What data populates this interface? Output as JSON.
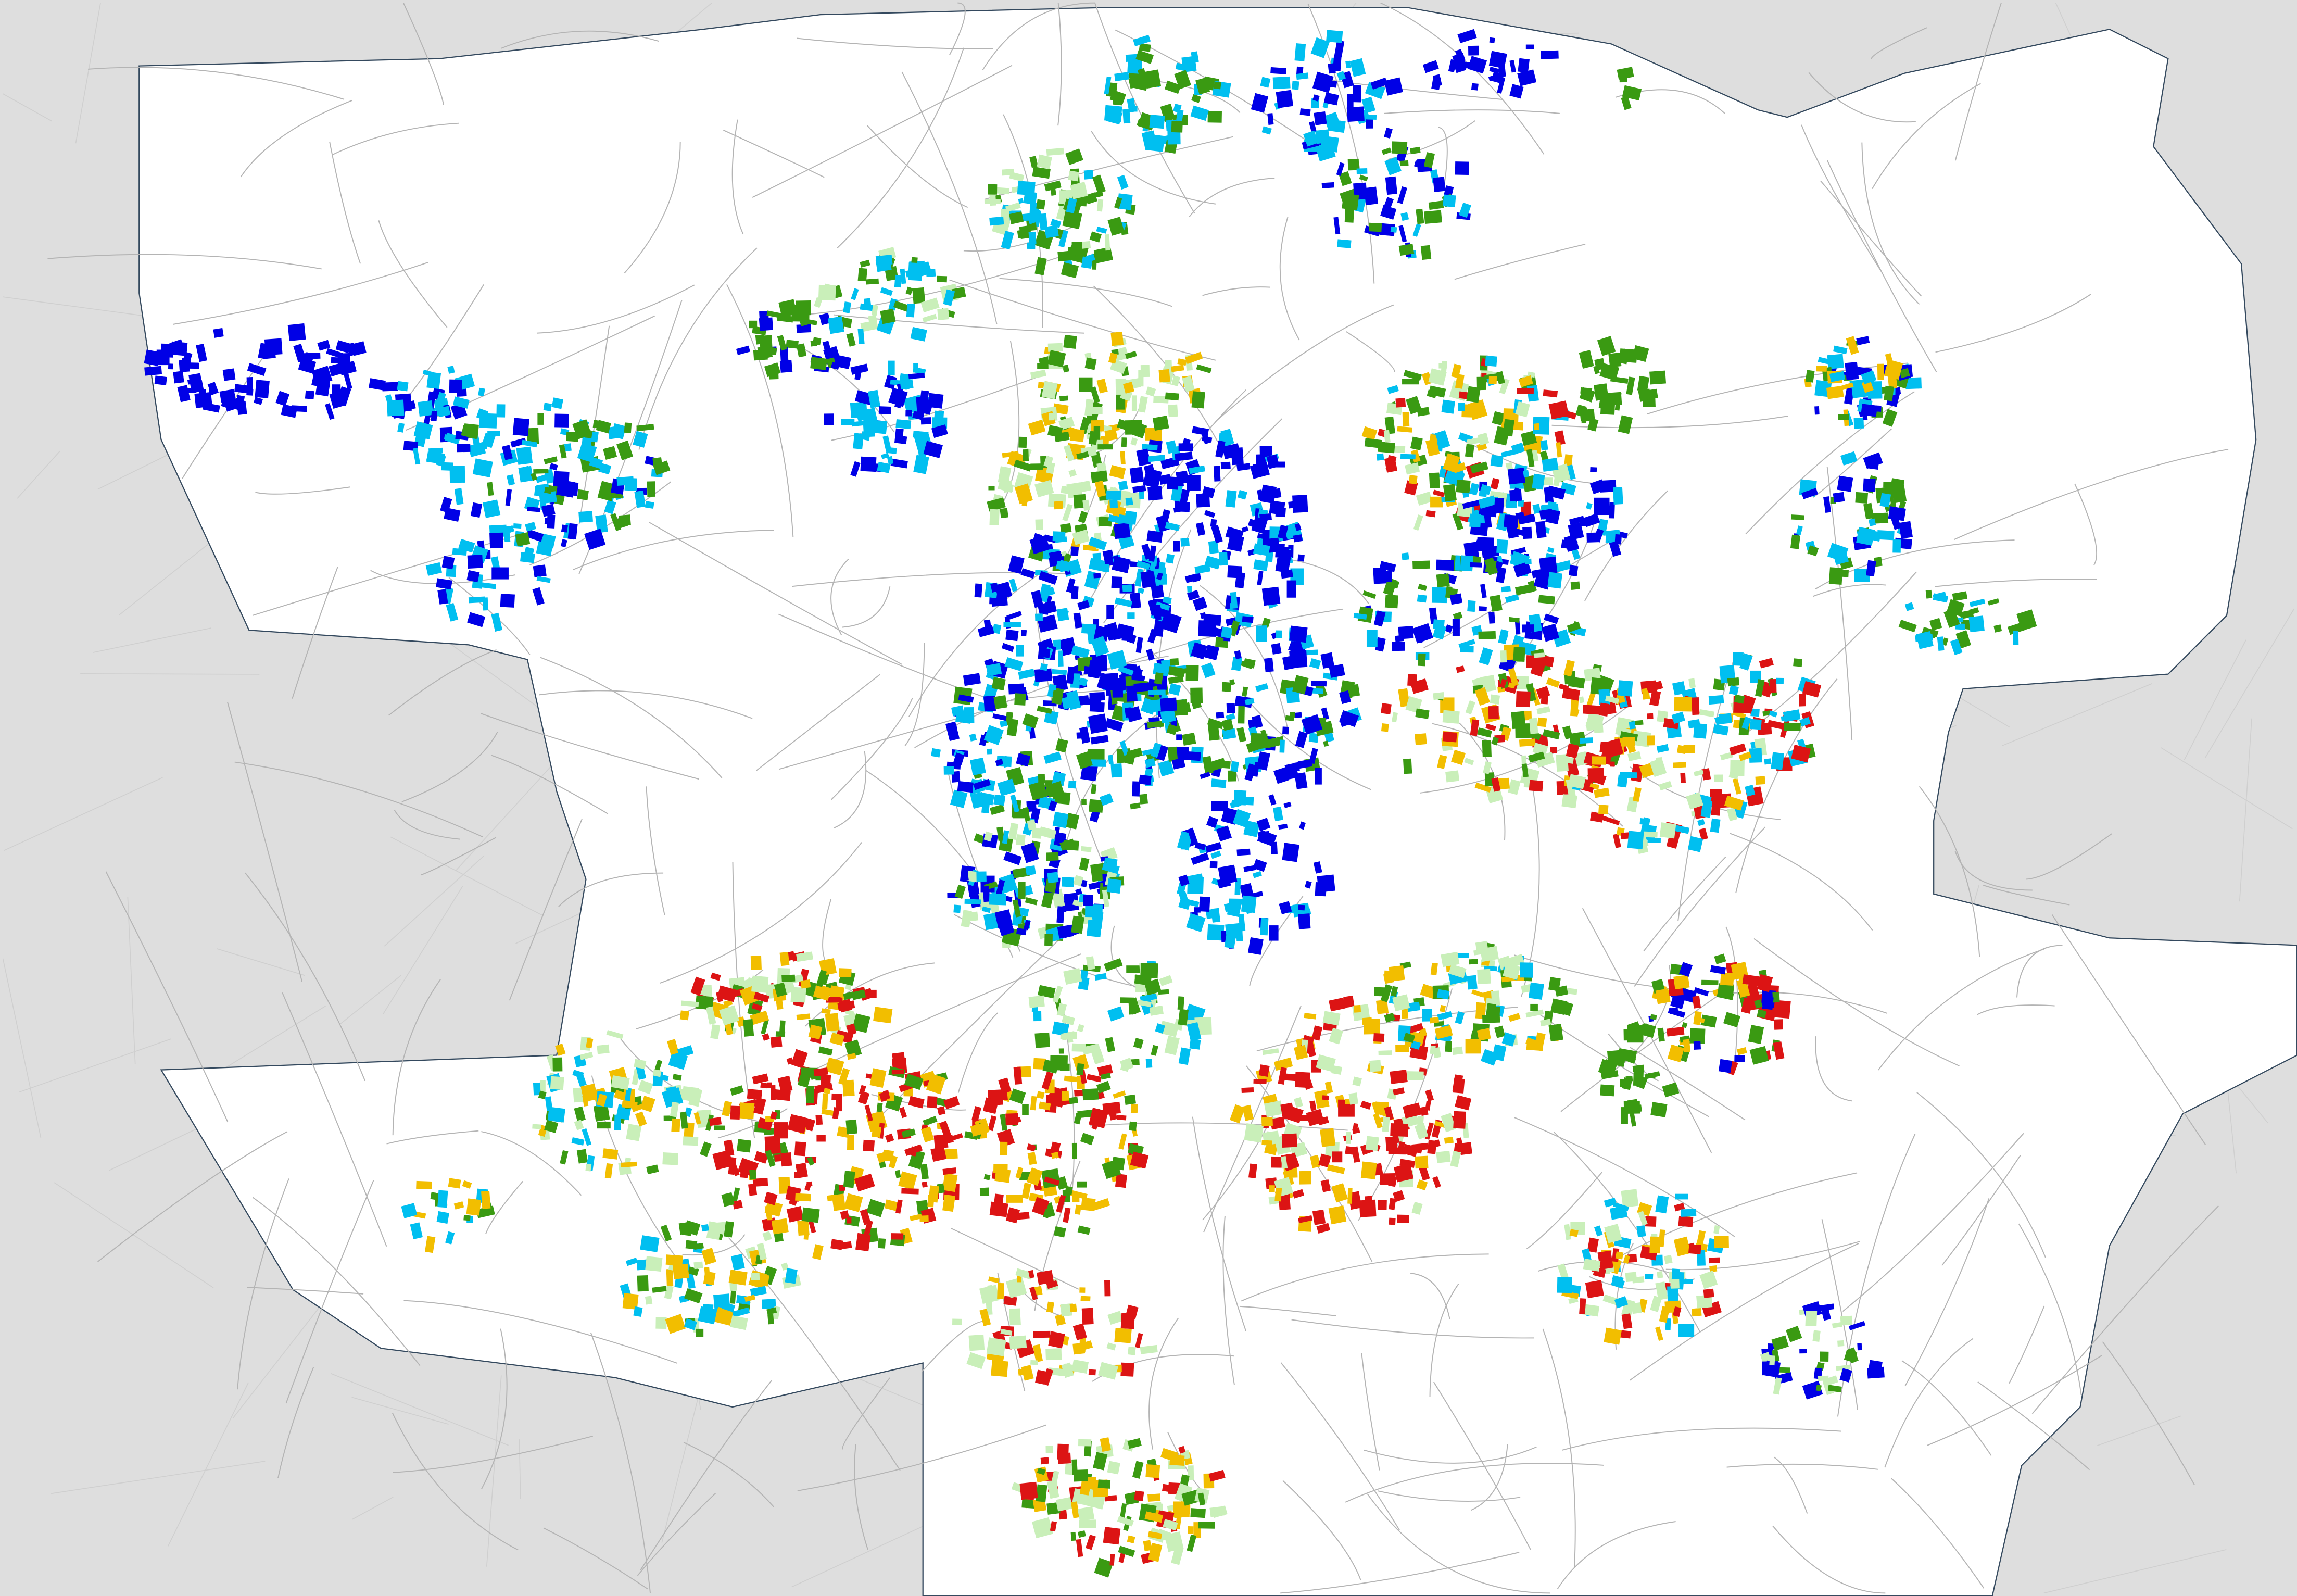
{
  "map": {
    "background_color": "#dedede",
    "municipality_fill": "#ffffff",
    "boundary_color": "#34495e",
    "street_color": "#b4b4b4",
    "category_colors": {
      "dark-blue": "#0000e6",
      "cyan": "#00bff0",
      "green": "#3a9a12",
      "light-green": "#c9efb9",
      "yellow": "#f2be00",
      "red": "#dc1414"
    }
  }
}
